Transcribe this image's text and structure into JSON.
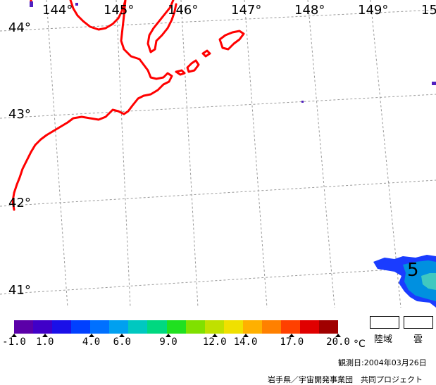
{
  "map": {
    "longitude_labels": [
      "144°",
      "145°",
      "146°",
      "147°",
      "148°",
      "149°",
      "15"
    ],
    "latitude_labels": [
      "44°",
      "43°",
      "42°",
      "41°"
    ],
    "contour_label": "5",
    "colors": {
      "coastline": "#ff0000",
      "grid": "#9a9a9a",
      "sst_deep": "#1a3cff",
      "sst_mid": "#0090e0",
      "sst_light": "#40c8c0",
      "cloud_speck": "#5020c0"
    }
  },
  "legend": {
    "colorbar_ticks": [
      "-1.0",
      "1.0",
      "4.0",
      "6.0",
      "9.0",
      "12.0",
      "14.0",
      "17.0",
      "20.0"
    ],
    "colorbar_min": -1.0,
    "colorbar_max": 20.0,
    "unit": "°C",
    "land_label": "陸域",
    "cloud_label": "雲",
    "colors": [
      "#5b00a8",
      "#4000c8",
      "#1a10e8",
      "#0040ff",
      "#0070ff",
      "#00a0f0",
      "#00c8c0",
      "#00d880",
      "#20e020",
      "#80e000",
      "#c0e000",
      "#f0e000",
      "#ffb000",
      "#ff8000",
      "#ff4000",
      "#e00000",
      "#a00000"
    ]
  },
  "footer": {
    "observation_date": "観測日:2004年03月26日",
    "credit": "岩手県／宇宙開発事業団　共同プロジェクト"
  }
}
